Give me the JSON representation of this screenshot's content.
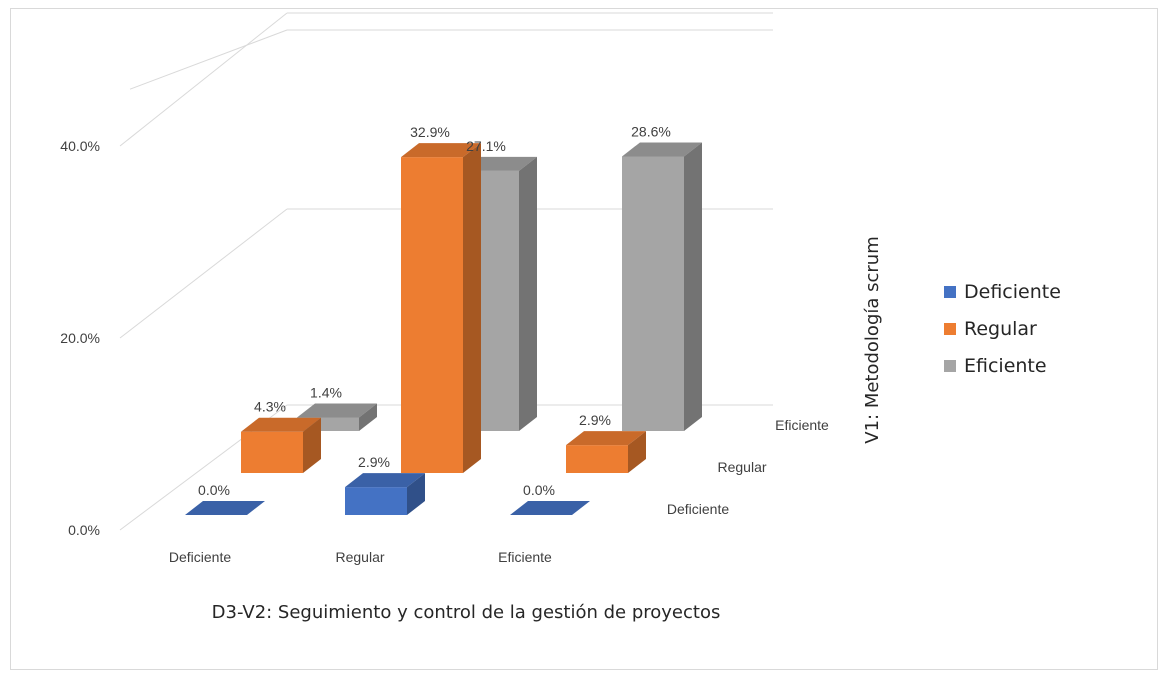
{
  "chart_data": {
    "type": "bar",
    "subtype": "3d-column",
    "xlabel": "D3-V2: Seguimiento y control de la gestión de proyectos",
    "zlabel": "V1: Metodología scrum",
    "categories": [
      "Deficiente",
      "Regular",
      "Eficiente"
    ],
    "y_ticks": [
      "0.0%",
      "20.0%",
      "40.0%"
    ],
    "ylim": [
      0,
      40
    ],
    "grid": true,
    "legend_position": "right",
    "series": [
      {
        "name": "Deficiente",
        "color": "#4472C4",
        "values": [
          0.0,
          2.9,
          0.0
        ],
        "labels": [
          "0.0%",
          "2.9%",
          "0.0%"
        ]
      },
      {
        "name": "Regular",
        "color": "#ED7D31",
        "values": [
          4.3,
          32.9,
          2.9
        ],
        "labels": [
          "4.3%",
          "32.9%",
          "2.9%"
        ]
      },
      {
        "name": "Eficiente",
        "color": "#A5A5A5",
        "values": [
          1.4,
          27.1,
          28.6
        ],
        "labels": [
          "1.4%",
          "27.1%",
          "28.6%"
        ]
      }
    ]
  }
}
